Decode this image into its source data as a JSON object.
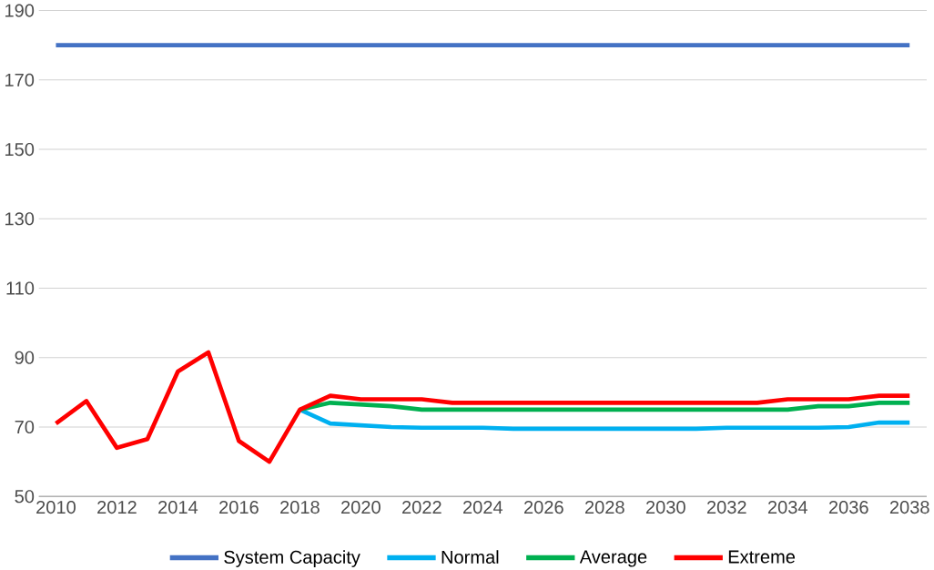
{
  "chart_data": {
    "type": "line",
    "x": [
      2010,
      2011,
      2012,
      2013,
      2014,
      2015,
      2016,
      2017,
      2018,
      2019,
      2020,
      2021,
      2022,
      2023,
      2024,
      2025,
      2026,
      2027,
      2028,
      2029,
      2030,
      2031,
      2032,
      2033,
      2034,
      2035,
      2036,
      2037,
      2038
    ],
    "series": [
      {
        "name": "System Capacity",
        "color": "#4472c4",
        "values": [
          180,
          180,
          180,
          180,
          180,
          180,
          180,
          180,
          180,
          180,
          180,
          180,
          180,
          180,
          180,
          180,
          180,
          180,
          180,
          180,
          180,
          180,
          180,
          180,
          180,
          180,
          180,
          180,
          180
        ]
      },
      {
        "name": "Normal",
        "color": "#00b0f0",
        "values": [
          null,
          null,
          null,
          null,
          null,
          null,
          null,
          null,
          75,
          71,
          70.5,
          70,
          69.8,
          69.8,
          69.8,
          69.5,
          69.5,
          69.5,
          69.5,
          69.5,
          69.5,
          69.5,
          69.8,
          69.8,
          69.8,
          69.8,
          70,
          71.3,
          71.3
        ]
      },
      {
        "name": "Average",
        "color": "#00b050",
        "values": [
          null,
          null,
          null,
          null,
          null,
          null,
          null,
          null,
          75,
          77,
          76.5,
          76,
          75,
          75,
          75,
          75,
          75,
          75,
          75,
          75,
          75,
          75,
          75,
          75,
          75,
          76,
          76,
          77,
          77
        ]
      },
      {
        "name": "Extreme",
        "color": "#ff0000",
        "values": [
          71,
          77.5,
          64,
          66.5,
          86,
          91.5,
          66,
          60,
          75,
          79,
          78,
          78,
          78,
          77,
          77,
          77,
          77,
          77,
          77,
          77,
          77,
          77,
          77,
          77,
          78,
          78,
          78,
          79,
          79
        ]
      }
    ],
    "xlim": [
      2010,
      2038
    ],
    "xticks": [
      2010,
      2012,
      2014,
      2016,
      2018,
      2020,
      2022,
      2024,
      2026,
      2028,
      2030,
      2032,
      2034,
      2036,
      2038
    ],
    "ylim": [
      50,
      190
    ],
    "yticks": [
      50,
      70,
      90,
      110,
      130,
      150,
      170,
      190
    ],
    "grid": "y",
    "legend": "bottom",
    "marker": "none",
    "line_style": "solid"
  }
}
